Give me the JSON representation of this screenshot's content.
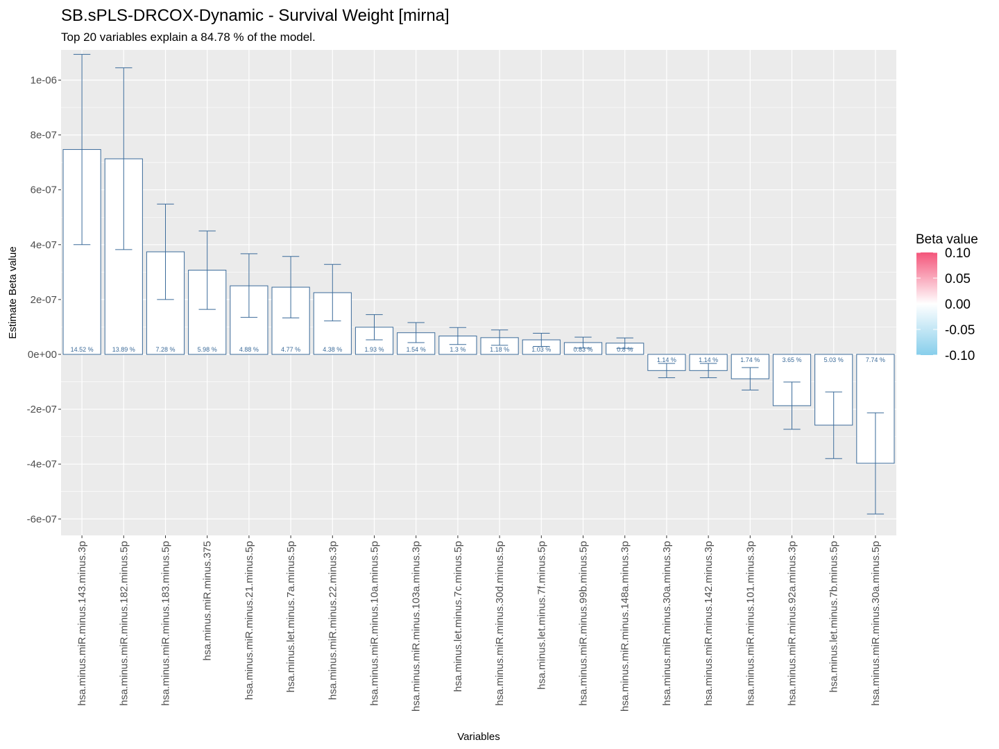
{
  "chart_data": {
    "type": "bar",
    "title": "SB.sPLS-DRCOX-Dynamic - Survival Weight [mirna]",
    "subtitle": "Top 20 variables explain a 84.78 % of the model.",
    "xlabel": "Variables",
    "ylabel": "Estimate Beta value",
    "ylim": [
      -6.6e-07,
      1.11e-06
    ],
    "yticks": [
      -6e-07,
      -4e-07,
      -2e-07,
      0,
      2e-07,
      4e-07,
      6e-07,
      8e-07,
      1e-06
    ],
    "ytick_labels": [
      "-6e-07",
      "-4e-07",
      "-2e-07",
      "0e+00",
      "2e-07",
      "4e-07",
      "6e-07",
      "8e-07",
      "1e-06"
    ],
    "grid": true,
    "categories": [
      "hsa.minus.miR.minus.143.minus.3p",
      "hsa.minus.miR.minus.182.minus.5p",
      "hsa.minus.miR.minus.183.minus.5p",
      "hsa.minus.miR.minus.375",
      "hsa.minus.miR.minus.21.minus.5p",
      "hsa.minus.let.minus.7a.minus.5p",
      "hsa.minus.miR.minus.22.minus.3p",
      "hsa.minus.miR.minus.10a.minus.5p",
      "hsa.minus.miR.minus.103a.minus.3p",
      "hsa.minus.let.minus.7c.minus.5p",
      "hsa.minus.miR.minus.30d.minus.5p",
      "hsa.minus.let.minus.7f.minus.5p",
      "hsa.minus.miR.minus.99b.minus.5p",
      "hsa.minus.miR.minus.148a.minus.3p",
      "hsa.minus.miR.minus.30a.minus.3p",
      "hsa.minus.miR.minus.142.minus.3p",
      "hsa.minus.miR.minus.101.minus.3p",
      "hsa.minus.miR.minus.92a.minus.3p",
      "hsa.minus.let.minus.7b.minus.5p",
      "hsa.minus.miR.minus.30a.minus.5p"
    ],
    "values": [
      7.47e-07,
      7.13e-07,
      3.74e-07,
      3.07e-07,
      2.5e-07,
      2.45e-07,
      2.25e-07,
      9.9e-08,
      7.9e-08,
      6.7e-08,
      6.1e-08,
      5.3e-08,
      4.3e-08,
      4.1e-08,
      -5.9e-08,
      -5.9e-08,
      -8.9e-08,
      -1.87e-07,
      -2.58e-07,
      -3.97e-07
    ],
    "error_low": [
      4e-07,
      3.82e-07,
      2e-07,
      1.64e-07,
      1.35e-07,
      1.33e-07,
      1.22e-07,
      5.3e-08,
      4.3e-08,
      3.6e-08,
      3.3e-08,
      2.9e-08,
      2.3e-08,
      2.2e-08,
      -8.5e-08,
      -8.5e-08,
      -1.3e-07,
      -2.73e-07,
      -3.8e-07,
      -5.82e-07
    ],
    "error_high": [
      1.094e-06,
      1.045e-06,
      5.48e-07,
      4.5e-07,
      3.67e-07,
      3.57e-07,
      3.28e-07,
      1.45e-07,
      1.16e-07,
      9.8e-08,
      8.9e-08,
      7.7e-08,
      6.3e-08,
      6e-08,
      -3.3e-08,
      -3.3e-08,
      -4.8e-08,
      -1.01e-07,
      -1.37e-07,
      -2.13e-07
    ],
    "labels": [
      "14.52 %",
      "13.89 %",
      "7.28 %",
      "5.98 %",
      "4.88 %",
      "4.77 %",
      "4.38 %",
      "1.93 %",
      "1.54 %",
      "1.3 %",
      "1.18 %",
      "1.03 %",
      "0.83 %",
      "0.8 %",
      "1.14 %",
      "1.14 %",
      "1.74 %",
      "3.65 %",
      "5.03 %",
      "7.74 %"
    ],
    "legend": {
      "title": "Beta value",
      "ticks": [
        0.1,
        0.05,
        0.0,
        -0.05,
        -0.1
      ],
      "tick_labels": [
        "0.10",
        "0.05",
        "0.00",
        "-0.05",
        "-0.10"
      ],
      "colors": {
        "high": "#f4557a",
        "mid": "#ffffff",
        "low": "#87ceeb"
      },
      "position": "right"
    },
    "colors": {
      "panel": "#ebebeb",
      "grid": "#ffffff",
      "bar_fill": "#ffffff",
      "bar_stroke": "#3a6a99"
    }
  }
}
